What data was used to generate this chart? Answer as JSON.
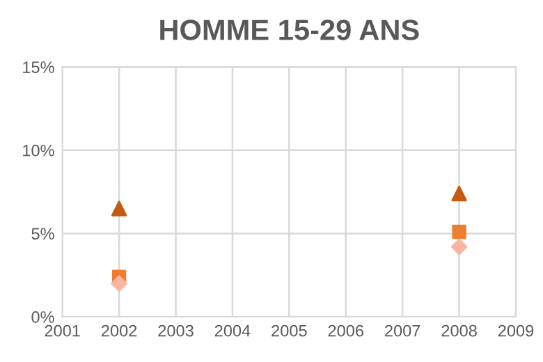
{
  "chart_data": {
    "type": "scatter",
    "title": "HOMME 15-29 ANS",
    "x": [
      2002,
      2008
    ],
    "series": [
      {
        "color": "#c55a11",
        "marker": "triangle",
        "values": [
          6.5,
          7.4
        ]
      },
      {
        "color": "#ed7d31",
        "marker": "square",
        "values": [
          2.4,
          5.1
        ]
      },
      {
        "color": "#f8b5a0",
        "marker": "diamond",
        "values": [
          2.0,
          4.2
        ]
      }
    ],
    "xlim": [
      2001,
      2009
    ],
    "xticks": [
      2001,
      2002,
      2003,
      2004,
      2005,
      2006,
      2007,
      2008,
      2009
    ],
    "ylim": [
      0,
      15
    ],
    "yticks": [
      {
        "value": 0,
        "label": "0%"
      },
      {
        "value": 5,
        "label": "5%"
      },
      {
        "value": 10,
        "label": "10%"
      },
      {
        "value": 15,
        "label": "15%"
      }
    ],
    "grid": true,
    "legend": false
  }
}
